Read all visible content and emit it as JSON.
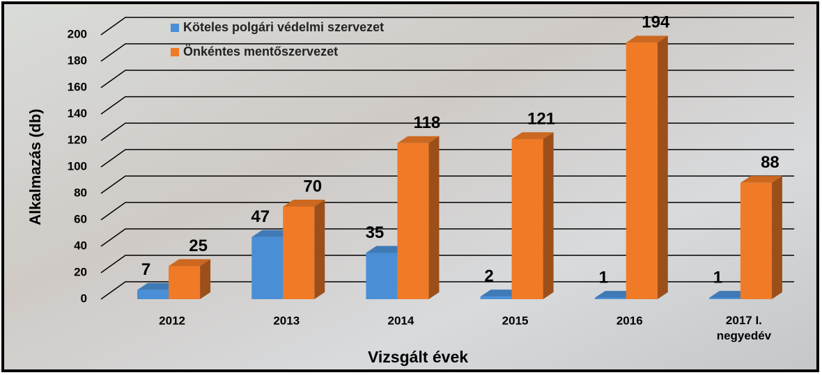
{
  "chart_data": {
    "type": "bar3d",
    "y_label": "Alkalmazás (db)",
    "x_label": "Vizsgált évek",
    "categories": [
      "2012",
      "2013",
      "2014",
      "2015",
      "2016",
      "2017 I. negyedév"
    ],
    "series": [
      {
        "name": "Köteles polgári védelmi szervezet",
        "color": "#4a8fd6",
        "values": [
          7,
          47,
          35,
          2,
          1,
          1
        ]
      },
      {
        "name": "Önkéntes mentőszervezet",
        "color": "#f07a26",
        "values": [
          25,
          70,
          118,
          121,
          194,
          88
        ]
      }
    ],
    "ylim": [
      0,
      200
    ],
    "yticks": [
      0,
      20,
      40,
      60,
      80,
      100,
      120,
      140,
      160,
      180,
      200
    ],
    "grid": true,
    "legend": "top-left",
    "data_labels": true
  }
}
